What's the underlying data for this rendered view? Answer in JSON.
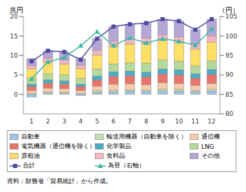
{
  "chart_data": {
    "type": "bar",
    "stacked": true,
    "grid": false,
    "ylabel": "兆円",
    "y2label": "（円）",
    "source": "資料：財務省「貿易統計」から作成。",
    "categories": [
      "1",
      "2",
      "3",
      "4",
      "5",
      "6",
      "7",
      "8",
      "9",
      "10",
      "11",
      "12"
    ],
    "ylim": [
      -5,
      20
    ],
    "yticks": [
      0,
      5,
      10,
      15,
      20
    ],
    "y2lim": [
      80,
      105
    ],
    "y2ticks": [
      80,
      85,
      90,
      95,
      100,
      105
    ],
    "series": [
      {
        "name": "自動車",
        "color": "#9dc3e6",
        "values": [
          -0.7,
          0.3,
          0.2,
          -0.3,
          0.5,
          0.6,
          0.8,
          0.7,
          0.9,
          0.8,
          0.6,
          0.8
        ]
      },
      {
        "name": "輸送用機器（自動車を除く）",
        "color": "#c5e0b4",
        "values": [
          0.2,
          0.3,
          0.3,
          0.2,
          0.4,
          0.5,
          0.4,
          0.4,
          0.5,
          0.5,
          0.4,
          0.5
        ]
      },
      {
        "name": "通信機",
        "color": "#f8cbad",
        "values": [
          0.8,
          1.0,
          1.0,
          0.8,
          1.2,
          1.5,
          1.5,
          1.4,
          1.6,
          1.5,
          1.3,
          1.5
        ]
      },
      {
        "name": "電気機器（通信機を除く）",
        "color": "#e8756b",
        "values": [
          1.0,
          1.3,
          1.2,
          1.0,
          1.6,
          2.0,
          2.1,
          2.0,
          2.2,
          2.2,
          1.9,
          2.3
        ]
      },
      {
        "name": "化学製品",
        "color": "#4bacc6",
        "values": [
          0.6,
          0.8,
          0.8,
          0.6,
          1.0,
          1.2,
          1.2,
          1.2,
          1.3,
          1.3,
          1.1,
          1.3
        ]
      },
      {
        "name": "LNG",
        "color": "#b5d99c",
        "values": [
          1.5,
          1.6,
          1.5,
          1.5,
          1.8,
          2.0,
          2.1,
          2.3,
          2.3,
          2.2,
          2.0,
          2.2
        ]
      },
      {
        "name": "原粗油",
        "color": "#ffe066",
        "values": [
          2.5,
          3.0,
          2.8,
          2.5,
          3.6,
          4.5,
          4.8,
          5.0,
          5.0,
          4.8,
          4.3,
          4.8
        ]
      },
      {
        "name": "食料品",
        "color": "#f4b6c2",
        "values": [
          0.8,
          1.0,
          1.0,
          0.9,
          1.2,
          1.4,
          1.4,
          1.5,
          1.5,
          1.5,
          1.4,
          1.6
        ]
      },
      {
        "name": "その他",
        "color": "#b4a7d6",
        "values": [
          1.8,
          1.9,
          2.1,
          1.7,
          3.0,
          3.7,
          3.7,
          3.8,
          4.0,
          4.0,
          3.6,
          4.3
        ]
      },
      {
        "name": "合計",
        "type": "line",
        "color": "#4a4aa0",
        "marker": "square",
        "values": [
          8.5,
          11.2,
          10.9,
          8.9,
          14.3,
          17.4,
          18.0,
          18.3,
          19.3,
          18.8,
          16.6,
          19.3
        ]
      },
      {
        "name": "為替（右軸）",
        "type": "line",
        "axis": "y2",
        "color": "#3fb8a8",
        "marker": "triangle",
        "values": [
          89.0,
          93.3,
          94.5,
          97.5,
          101.1,
          97.5,
          99.5,
          98.2,
          99.3,
          98.6,
          97.6,
          101.8
        ]
      }
    ]
  }
}
